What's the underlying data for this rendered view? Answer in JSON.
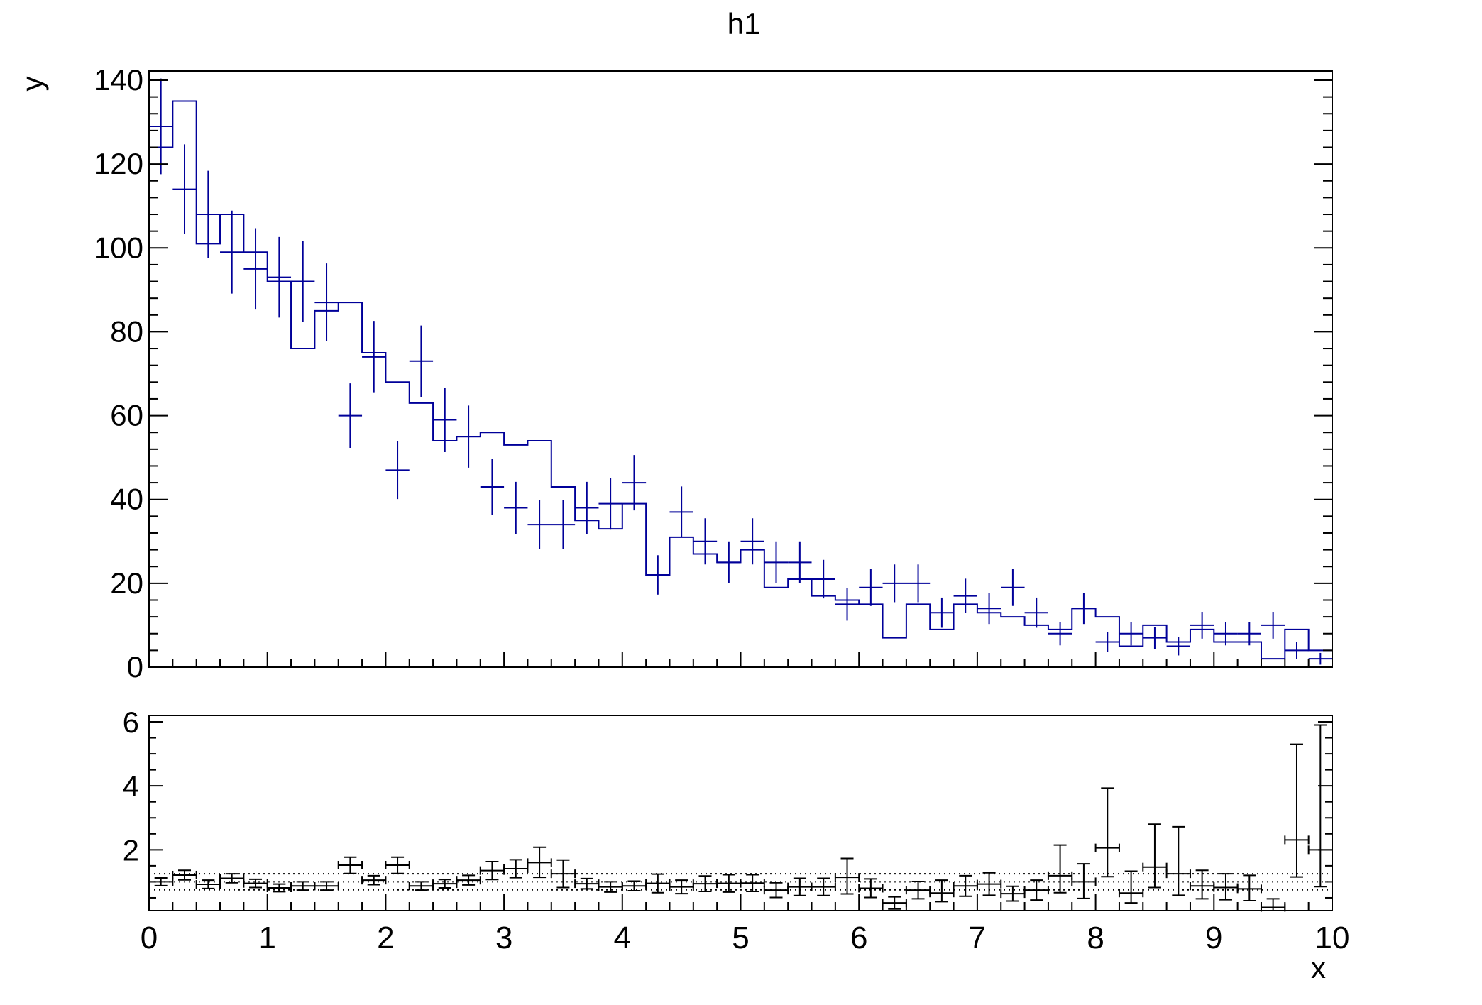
{
  "title": "h1",
  "colors": {
    "series": "#000099",
    "axis": "#000000",
    "background": "#ffffff"
  },
  "chart_data": {
    "type": "line",
    "title": "h1",
    "xlabel": "x",
    "ylabel": "y",
    "x_range": [
      0,
      10
    ],
    "bin_width": 0.2,
    "x_tick_labels": [
      "0",
      "1",
      "2",
      "3",
      "4",
      "5",
      "6",
      "7",
      "8",
      "9",
      "10"
    ],
    "main": {
      "ylim": [
        0,
        142.2
      ],
      "yticks": [
        0,
        20,
        40,
        60,
        80,
        100,
        120,
        140
      ],
      "y_minor_step": 4,
      "x_minor_step": 0.2,
      "hist": [
        124,
        135,
        101,
        108,
        99,
        92,
        76,
        85,
        87,
        75,
        68,
        63,
        54,
        55,
        56,
        53,
        54,
        43,
        35,
        33,
        39,
        22,
        31,
        27,
        25,
        28,
        19,
        21,
        17,
        16,
        15,
        7,
        15,
        9,
        15,
        13,
        12,
        10,
        9,
        14,
        12,
        5,
        10,
        6,
        9,
        6,
        6,
        2,
        9,
        4
      ],
      "points": [
        129,
        114,
        108,
        99,
        95,
        93,
        92,
        87,
        60,
        74,
        47,
        73,
        59,
        55,
        43,
        38,
        34,
        34,
        38,
        39,
        44,
        22,
        37,
        30,
        25,
        30,
        25,
        25,
        21,
        15,
        19,
        20,
        20,
        13,
        17,
        14,
        19,
        13,
        8,
        14,
        6,
        8,
        7,
        5,
        10,
        8,
        8,
        10,
        4,
        2
      ],
      "point_errors": [
        11.4,
        10.7,
        10.4,
        9.9,
        9.7,
        9.6,
        9.6,
        9.3,
        7.7,
        8.6,
        6.9,
        8.5,
        7.7,
        7.4,
        6.6,
        6.2,
        5.8,
        5.8,
        6.2,
        6.2,
        6.6,
        4.7,
        6.1,
        5.5,
        5.0,
        5.5,
        5.0,
        5.0,
        4.6,
        3.9,
        4.4,
        4.5,
        4.5,
        3.6,
        4.1,
        3.7,
        4.4,
        3.6,
        2.8,
        3.7,
        2.4,
        2.8,
        2.6,
        2.2,
        3.2,
        2.8,
        2.8,
        3.2,
        2.0,
        1.4
      ]
    },
    "ratio": {
      "ylim": [
        0.1,
        6.2
      ],
      "yticks": [
        2,
        4,
        6
      ],
      "y_minor_step": 0.5,
      "dotted_lines": [
        0.75,
        1.0,
        1.25
      ],
      "values": [
        1.0,
        1.21,
        0.92,
        1.11,
        0.95,
        0.81,
        0.87,
        0.87,
        1.52,
        1.05,
        1.52,
        0.87,
        0.94,
        1.05,
        1.35,
        1.41,
        1.6,
        1.25,
        0.94,
        0.84,
        0.87,
        0.95,
        0.84,
        0.94,
        0.95,
        0.96,
        0.74,
        0.84,
        0.84,
        1.14,
        0.8,
        0.34,
        0.74,
        0.65,
        0.87,
        0.93,
        0.63,
        0.74,
        1.19,
        1.0,
        2.06,
        0.65,
        1.46,
        1.25,
        0.87,
        0.82,
        0.78,
        0.2,
        2.31,
        2.0
      ],
      "err_lo": [
        0.88,
        1.06,
        0.79,
        0.97,
        0.82,
        0.69,
        0.74,
        0.74,
        1.26,
        0.91,
        1.26,
        0.74,
        0.81,
        0.9,
        1.07,
        1.13,
        1.14,
        0.82,
        0.78,
        0.68,
        0.72,
        0.66,
        0.63,
        0.7,
        0.68,
        0.7,
        0.51,
        0.57,
        0.57,
        0.62,
        0.51,
        0.15,
        0.47,
        0.38,
        0.55,
        0.58,
        0.4,
        0.43,
        0.66,
        0.48,
        1.16,
        0.34,
        0.82,
        0.58,
        0.47,
        0.44,
        0.41,
        0.05,
        1.15,
        0.85
      ],
      "err_hi": [
        1.12,
        1.36,
        1.05,
        1.25,
        1.08,
        0.93,
        1.0,
        1.0,
        1.77,
        1.19,
        1.77,
        1.0,
        1.07,
        1.2,
        1.63,
        1.69,
        2.08,
        1.68,
        1.1,
        1.0,
        1.02,
        1.24,
        1.05,
        1.18,
        1.22,
        1.22,
        0.97,
        1.11,
        1.11,
        1.73,
        1.09,
        0.53,
        1.01,
        1.05,
        1.19,
        1.28,
        0.86,
        1.05,
        2.15,
        1.56,
        3.93,
        1.33,
        2.8,
        2.72,
        1.36,
        1.25,
        1.2,
        0.47,
        5.3,
        5.9
      ]
    }
  }
}
